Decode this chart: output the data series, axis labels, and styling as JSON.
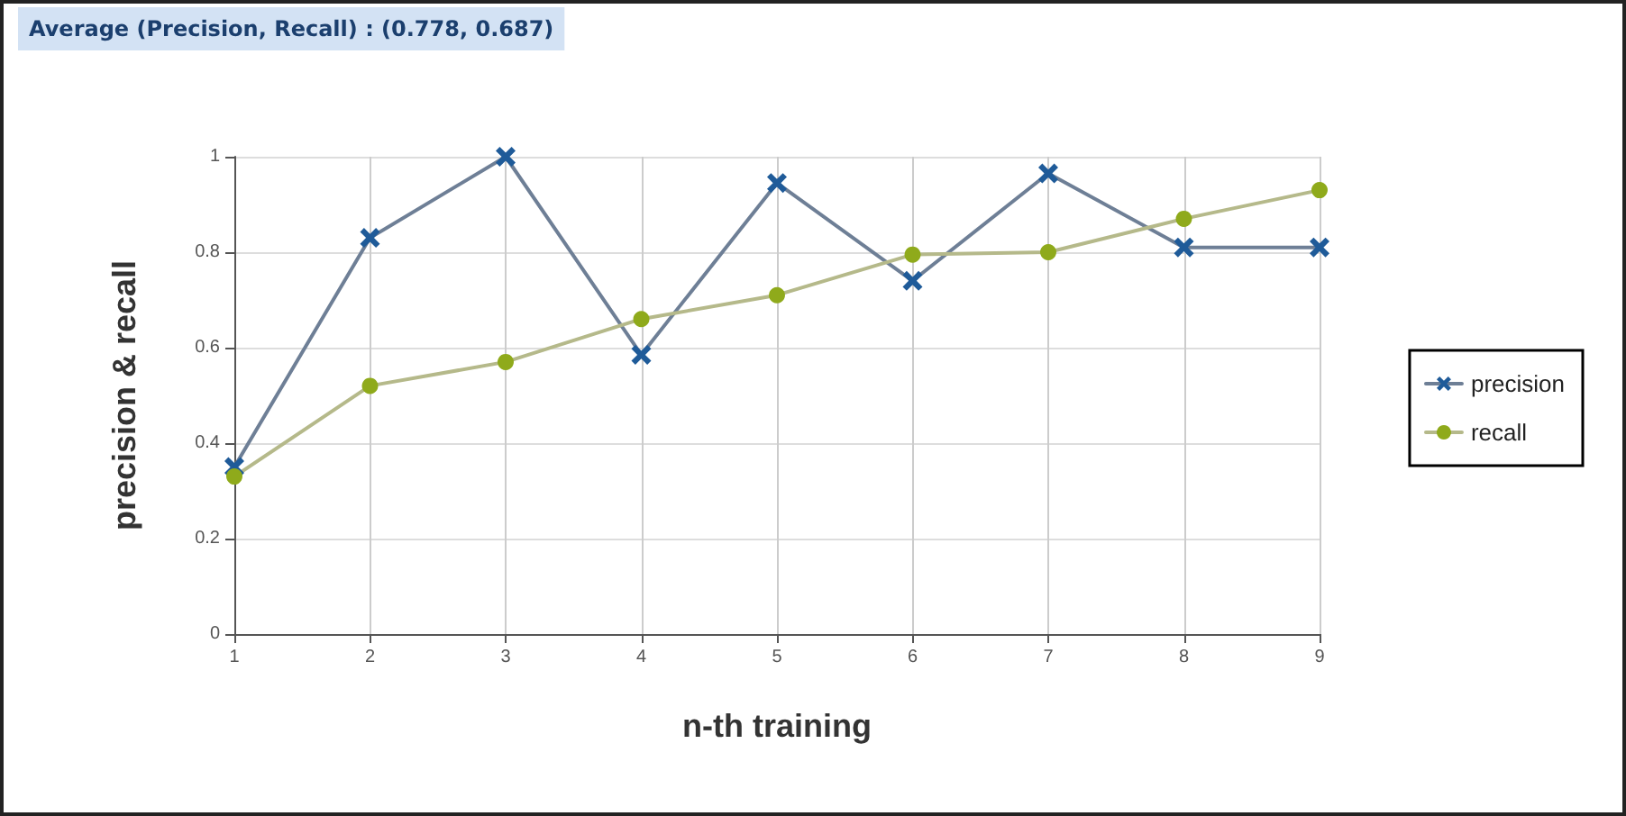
{
  "chart_data": {
    "type": "line",
    "title": "Average (Precision, Recall) : (0.778, 0.687)",
    "xlabel": "n-th training",
    "ylabel": "precision & recall",
    "categories": [
      "1",
      "2",
      "3",
      "4",
      "5",
      "6",
      "7",
      "8",
      "9"
    ],
    "series": [
      {
        "name": "precision",
        "color": "#1f5b99",
        "marker": "cross",
        "values": [
          0.35,
          0.83,
          1.0,
          0.585,
          0.945,
          0.74,
          0.965,
          0.81,
          0.81
        ]
      },
      {
        "name": "recall",
        "color": "#8faa1b",
        "marker": "circle",
        "values": [
          0.33,
          0.52,
          0.57,
          0.66,
          0.71,
          0.795,
          0.8,
          0.87,
          0.93
        ]
      }
    ],
    "ylim": [
      0,
      1
    ],
    "yticks": [
      0,
      0.2,
      0.4,
      0.6,
      0.8,
      1
    ],
    "grid": true,
    "legend": "right",
    "line_style": "solid"
  }
}
